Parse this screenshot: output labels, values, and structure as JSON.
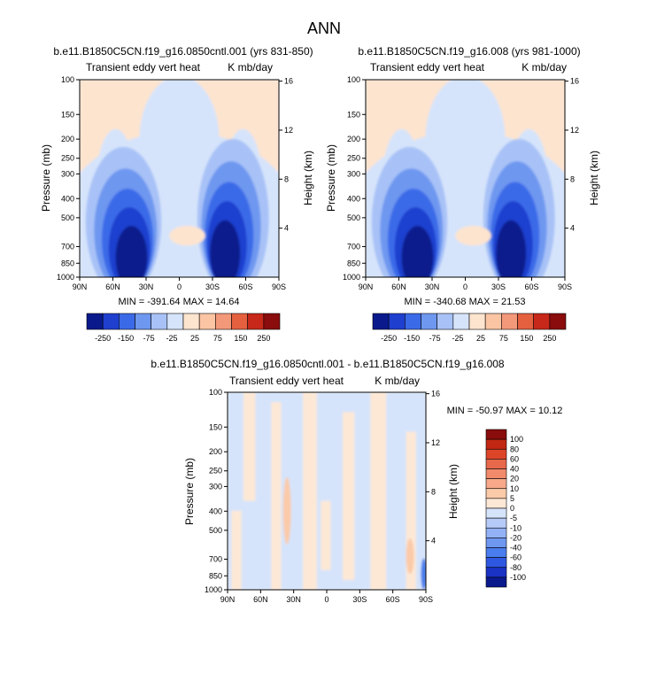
{
  "figure_title": "ANN",
  "colors": {
    "abs_scale": [
      "#0a1a8c",
      "#1f3fcf",
      "#3b6ae8",
      "#6e97f0",
      "#a8c2f7",
      "#d6e4fb",
      "#fde4cf",
      "#fbc5a4",
      "#f4987a",
      "#e5603f",
      "#c7281a",
      "#8a0c0c"
    ],
    "diff_scale": [
      "#0a1a8c",
      "#1a33c4",
      "#2f58e2",
      "#4a7ded",
      "#6e97f0",
      "#93b2f5",
      "#b7cbf8",
      "#d6e4fb",
      "#fde8d6",
      "#fbcaa9",
      "#f7a98a",
      "#f08a6b",
      "#e8684b",
      "#dd4529",
      "#c22713",
      "#8a0c0c"
    ]
  },
  "chart_data": [
    {
      "type": "heatmap",
      "title": "b.e11.B1850C5CN.f19_g16.0850cntl.001 (yrs 831-850)",
      "left_subtitle": "Transient eddy vert heat",
      "right_subtitle": "K mb/day",
      "ylabel": "Pressure (mb)",
      "ylabel_right": "Height (km)",
      "x_ticks": [
        "90N",
        "60N",
        "30N",
        "0",
        "30S",
        "60S",
        "90S"
      ],
      "y_ticks": [
        "100",
        "150",
        "200",
        "250",
        "300",
        "400",
        "500",
        "700",
        "850",
        "1000"
      ],
      "y_right_ticks": [
        "16",
        "12",
        "8",
        "4"
      ],
      "min_max": "MIN = -391.64   MAX = 14.64",
      "ylim": [
        1000,
        100
      ],
      "xlim": [
        "90N",
        "90S"
      ],
      "colorbar_labels": [
        "-250",
        "-150",
        "-75",
        "-25",
        "25",
        "75",
        "150",
        "250"
      ],
      "colorbar_levels": [
        -250,
        -200,
        -150,
        -100,
        -75,
        -50,
        -25,
        0,
        25,
        50,
        75,
        100,
        150,
        200,
        250
      ]
    },
    {
      "type": "heatmap",
      "title": "b.e11.B1850C5CN.f19_g16.008 (yrs 981-1000)",
      "left_subtitle": "Transient eddy vert heat",
      "right_subtitle": "K mb/day",
      "ylabel": "Pressure (mb)",
      "ylabel_right": "Height (km)",
      "x_ticks": [
        "90N",
        "60N",
        "30N",
        "0",
        "30S",
        "60S",
        "90S"
      ],
      "y_ticks": [
        "100",
        "150",
        "200",
        "250",
        "300",
        "400",
        "500",
        "700",
        "850",
        "1000"
      ],
      "y_right_ticks": [
        "16",
        "12",
        "8",
        "4"
      ],
      "min_max": "MIN = -340.68   MAX = 21.53",
      "ylim": [
        1000,
        100
      ],
      "xlim": [
        "90N",
        "90S"
      ],
      "colorbar_labels": [
        "-250",
        "-150",
        "-75",
        "-25",
        "25",
        "75",
        "150",
        "250"
      ]
    },
    {
      "type": "heatmap",
      "title": "b.e11.B1850C5CN.f19_g16.0850cntl.001 - b.e11.B1850C5CN.f19_g16.008",
      "left_subtitle": "Transient eddy vert heat",
      "right_subtitle": "K mb/day",
      "ylabel": "Pressure (mb)",
      "ylabel_right": "Height (km)",
      "x_ticks": [
        "90N",
        "60N",
        "30N",
        "0",
        "30S",
        "60S",
        "90S"
      ],
      "y_ticks": [
        "100",
        "150",
        "200",
        "250",
        "300",
        "400",
        "500",
        "700",
        "850",
        "1000"
      ],
      "y_right_ticks": [
        "16",
        "12",
        "8",
        "4"
      ],
      "min_max": "MIN = -50.97   MAX = 10.12",
      "ylim": [
        1000,
        100
      ],
      "xlim": [
        "90N",
        "90S"
      ],
      "colorbar_labels": [
        "100",
        "80",
        "60",
        "40",
        "20",
        "10",
        "5",
        "0",
        "-5",
        "-10",
        "-20",
        "-40",
        "-60",
        "-80",
        "-100"
      ]
    }
  ]
}
